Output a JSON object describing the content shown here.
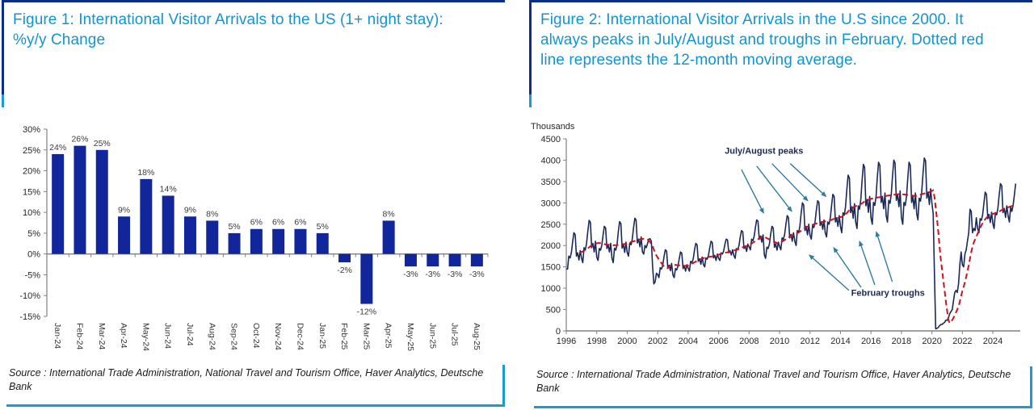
{
  "colors": {
    "title_blue": "#1095D2",
    "border_navy": "#0B2E87",
    "border_light_blue": "#1B9AD8",
    "bar_navy": "#12269C",
    "line_navy": "#1A2957",
    "ma_red": "#CF1020",
    "arrow_teal": "#2F7C9F",
    "axis_gray": "#808080",
    "tick_text": "#262626",
    "value_label": "#3a3a3a"
  },
  "panels": [
    {
      "title": "Figure 1: International Visitor Arrivals to the US (1+ night stay): %y/y Change",
      "source": "Source : International Trade Administration, National Travel and Tourism Office, Haver Analytics, Deutsche Bank"
    },
    {
      "title": "Figure 2: International Visitor Arrivals in the U.S since 2000. It always peaks in July/August and troughs in February. Dotted red line represents the 12-month moving average.",
      "source": "Source : International Trade Administration, National Travel and Tourism Office, Haver Analytics, Deutsche Bank"
    }
  ],
  "chart_data": [
    {
      "type": "bar",
      "title": "International Visitor Arrivals to the US (1+ night stay): %y/y Change",
      "categories": [
        "Jan-24",
        "Feb-24",
        "Mar-24",
        "Apr-24",
        "May-24",
        "Jun-24",
        "Jul-24",
        "Aug-24",
        "Sep-24",
        "Oct-24",
        "Nov-24",
        "Dec-24",
        "Jan-25",
        "Feb-25",
        "Mar-25",
        "Apr-25",
        "May-25",
        "Jun-25",
        "Jul-25",
        "Aug-25"
      ],
      "values": [
        24,
        26,
        25,
        9,
        18,
        14,
        9,
        8,
        5,
        6,
        6,
        6,
        5,
        -2,
        -12,
        8,
        -3,
        -3,
        -3,
        -3
      ],
      "value_suffix": "%",
      "xlabel": "",
      "ylabel": "",
      "ylim": [
        -15,
        30
      ],
      "ytick_step": 5,
      "ytick_suffix": "%",
      "grid": false,
      "legend": false
    },
    {
      "type": "line",
      "title": "International Visitor Arrivals in the U.S since 2000",
      "ylabel": "Thousands",
      "ylim": [
        0,
        4500
      ],
      "ytick_step": 500,
      "x_start_year": 1996,
      "x_end_year": 2025.8,
      "x_label_step": 2,
      "x_tick_years": [
        1996,
        1998,
        2000,
        2002,
        2004,
        2006,
        2008,
        2010,
        2012,
        2014,
        2016,
        2018,
        2020,
        2022,
        2024
      ],
      "grid": false,
      "series": [
        {
          "name": "Monthly visitor arrivals (thousands)",
          "start_year": 1996,
          "monthly_values": [
            1450,
            1450,
            1750,
            1710,
            1830,
            2090,
            2300,
            2260,
            1750,
            1830,
            1660,
            1880,
            1700,
            1600,
            1950,
            1900,
            2050,
            2340,
            2590,
            2540,
            1950,
            2050,
            1850,
            2100,
            1730,
            1650,
            1930,
            1890,
            2010,
            2250,
            2450,
            2410,
            1930,
            2010,
            1850,
            2050,
            1700,
            1600,
            1940,
            1890,
            2030,
            2320,
            2560,
            2510,
            1940,
            2030,
            1840,
            2080,
            1840,
            1750,
            2060,
            2020,
            2150,
            2420,
            2640,
            2600,
            2060,
            2150,
            1970,
            2200,
            1850,
            1800,
            2000,
            1950,
            2050,
            2150,
            2160,
            2100,
            1500,
            1100,
            1150,
            1350,
            1320,
            1250,
            1480,
            1450,
            1540,
            1740,
            1900,
            1870,
            1480,
            1540,
            1410,
            1580,
            1310,
            1250,
            1460,
            1430,
            1520,
            1700,
            1850,
            1820,
            1460,
            1520,
            1400,
            1550,
            1470,
            1400,
            1630,
            1600,
            1690,
            1890,
            2050,
            2020,
            1630,
            1690,
            1560,
            1730,
            1560,
            1500,
            1710,
            1680,
            1770,
            1950,
            2100,
            2070,
            1710,
            1770,
            1650,
            1800,
            1700,
            1650,
            1830,
            1800,
            1880,
            2030,
            2150,
            2130,
            1830,
            1880,
            1780,
            1900,
            1770,
            1700,
            1930,
            1900,
            1990,
            2190,
            2350,
            2320,
            1930,
            1990,
            1860,
            2030,
            1970,
            1900,
            2150,
            2110,
            2220,
            2430,
            2600,
            2570,
            2150,
            2220,
            2080,
            2250,
            1780,
            1700,
            1960,
            1930,
            2040,
            2260,
            2450,
            2410,
            1960,
            2040,
            1890,
            2080,
            1980,
            1900,
            2180,
            2140,
            2260,
            2500,
            2700,
            2660,
            2180,
            2260,
            2100,
            2300,
            2100,
            2000,
            2350,
            2300,
            2450,
            2750,
            3000,
            2950,
            2350,
            2450,
            2250,
            2500,
            2240,
            2150,
            2470,
            2420,
            2560,
            2830,
            3050,
            3010,
            2470,
            2560,
            2380,
            2600,
            2300,
            2200,
            2550,
            2500,
            2650,
            2950,
            3200,
            3150,
            2550,
            2650,
            2450,
            2700,
            2440,
            2300,
            2770,
            2710,
            2910,
            3310,
            3650,
            3580,
            2770,
            2910,
            2640,
            2980,
            2550,
            2400,
            2930,
            2850,
            3080,
            3530,
            3900,
            3830,
            2930,
            3080,
            2780,
            3150,
            2650,
            2500,
            3010,
            2940,
            3150,
            3590,
            3950,
            3880,
            3010,
            3150,
            2860,
            3230,
            2700,
            2550,
            3060,
            2990,
            3200,
            3640,
            4000,
            3930,
            3060,
            3200,
            2910,
            3280,
            2650,
            2500,
            3010,
            2940,
            3150,
            3590,
            3950,
            3880,
            3010,
            3150,
            2860,
            3230,
            2750,
            2600,
            3110,
            3040,
            3250,
            3690,
            4050,
            3980,
            3110,
            3250,
            2960,
            3330,
            3000,
            2750,
            1300,
            50,
            60,
            80,
            120,
            150,
            150,
            180,
            200,
            250,
            250,
            300,
            400,
            450,
            500,
            700,
            900,
            950,
            900,
            1100,
            1550,
            1850,
            1550,
            1500,
            1800,
            1900,
            2100,
            2300,
            2850,
            2800,
            2300,
            2400,
            2350,
            2650,
            2400,
            2300,
            2630,
            2590,
            2730,
            3010,
            3250,
            3200,
            2630,
            2730,
            2540,
            2780,
            2510,
            2400,
            2770,
            2720,
            2870,
            3190,
            3450,
            3400,
            2770,
            2870,
            2660,
            2930,
            2700,
            2550,
            2900,
            2800,
            2950,
            3200,
            3450
          ]
        },
        {
          "name": "12-month moving average",
          "derived_from": 0,
          "window": 12,
          "style": "dashed-red"
        }
      ],
      "annotations": {
        "peaks_label": {
          "text": "July/August peaks",
          "x": 2006.4,
          "y": 4150
        },
        "troughs_label": {
          "text": "February troughs",
          "x": 2014.7,
          "y": 820
        },
        "peak_arrows": [
          [
            2007.5,
            3780,
            2008.95,
            2760
          ],
          [
            2008.5,
            3860,
            2010.8,
            2800
          ],
          [
            2009.5,
            3920,
            2011.85,
            3050
          ],
          [
            2010.7,
            3920,
            2013.05,
            3150
          ]
        ],
        "trough_arrows": [
          [
            2014.55,
            950,
            2011.95,
            1780
          ],
          [
            2015.35,
            1020,
            2013.55,
            1950
          ],
          [
            2016.25,
            1080,
            2015.25,
            2100
          ],
          [
            2017.4,
            1150,
            2016.35,
            2320
          ]
        ]
      }
    }
  ]
}
